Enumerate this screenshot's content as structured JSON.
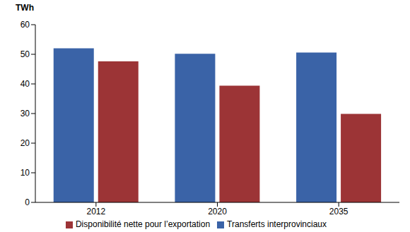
{
  "chart_data": {
    "type": "bar",
    "y_label": "TWh",
    "categories": [
      "2012",
      "2020",
      "2035"
    ],
    "series": [
      {
        "name": "Transferts interprovinciaux",
        "color": "#3a63a7",
        "values": [
          52,
          50.2,
          50.6
        ]
      },
      {
        "name": "Disponibilité nette pour l’exportation",
        "color": "#9c3436",
        "values": [
          47.6,
          39.4,
          29.9
        ]
      }
    ],
    "ylim": [
      0,
      60
    ],
    "yticks": [
      0,
      10,
      20,
      30,
      40,
      50,
      60
    ],
    "grid": false,
    "legend": "bottom"
  }
}
